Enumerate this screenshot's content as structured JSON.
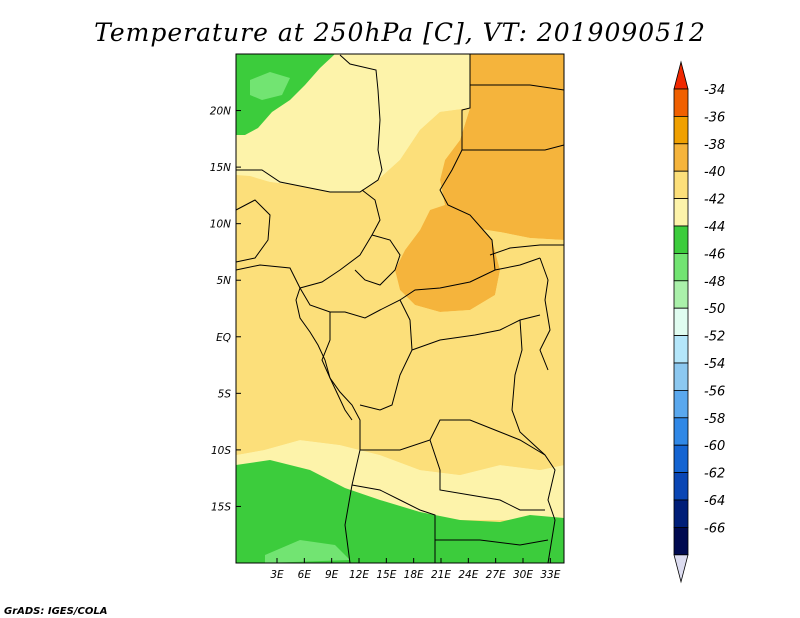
{
  "title": "Temperature at 250hPa [C], VT: 2019090512",
  "credit": "GrADS: IGES/COLA",
  "map": {
    "lon_range": [
      -1.5,
      34.5
    ],
    "lat_range": [
      -20,
      25
    ],
    "x_ticks": [
      {
        "label": "3E",
        "value": 3
      },
      {
        "label": "6E",
        "value": 6
      },
      {
        "label": "9E",
        "value": 9
      },
      {
        "label": "12E",
        "value": 12
      },
      {
        "label": "15E",
        "value": 15
      },
      {
        "label": "18E",
        "value": 18
      },
      {
        "label": "21E",
        "value": 21
      },
      {
        "label": "24E",
        "value": 24
      },
      {
        "label": "27E",
        "value": 27
      },
      {
        "label": "30E",
        "value": 30
      },
      {
        "label": "33E",
        "value": 33
      }
    ],
    "y_ticks": [
      {
        "label": "20N",
        "value": 20
      },
      {
        "label": "15N",
        "value": 15
      },
      {
        "label": "10N",
        "value": 10
      },
      {
        "label": "5N",
        "value": 5
      },
      {
        "label": "EQ",
        "value": 0
      },
      {
        "label": "5S",
        "value": -5
      },
      {
        "label": "10S",
        "value": -10
      },
      {
        "label": "15S",
        "value": -15
      }
    ]
  },
  "colorbar": {
    "labels": [
      "-34",
      "-36",
      "-38",
      "-40",
      "-42",
      "-44",
      "-46",
      "-48",
      "-50",
      "-52",
      "-54",
      "-56",
      "-58",
      "-60",
      "-62",
      "-64",
      "-66"
    ],
    "colors": [
      "#f02800",
      "#f06000",
      "#f0a000",
      "#f5b43c",
      "#fcdf7a",
      "#fdf3aa",
      "#3ccc3c",
      "#72e472",
      "#aaf0aa",
      "#e0fcf0",
      "#b4e6fa",
      "#8cc8f0",
      "#5aa8ee",
      "#3088e6",
      "#1464d2",
      "#0a46b4",
      "#001e78",
      "#000a50",
      "#dcdcf0"
    ]
  },
  "legend_colors": {
    "c_m44": "#fdf3aa",
    "c_m42": "#fcdf7a",
    "c_m40": "#f5b43c",
    "c_m46": "#3ccc3c",
    "c_m48": "#72e472"
  }
}
